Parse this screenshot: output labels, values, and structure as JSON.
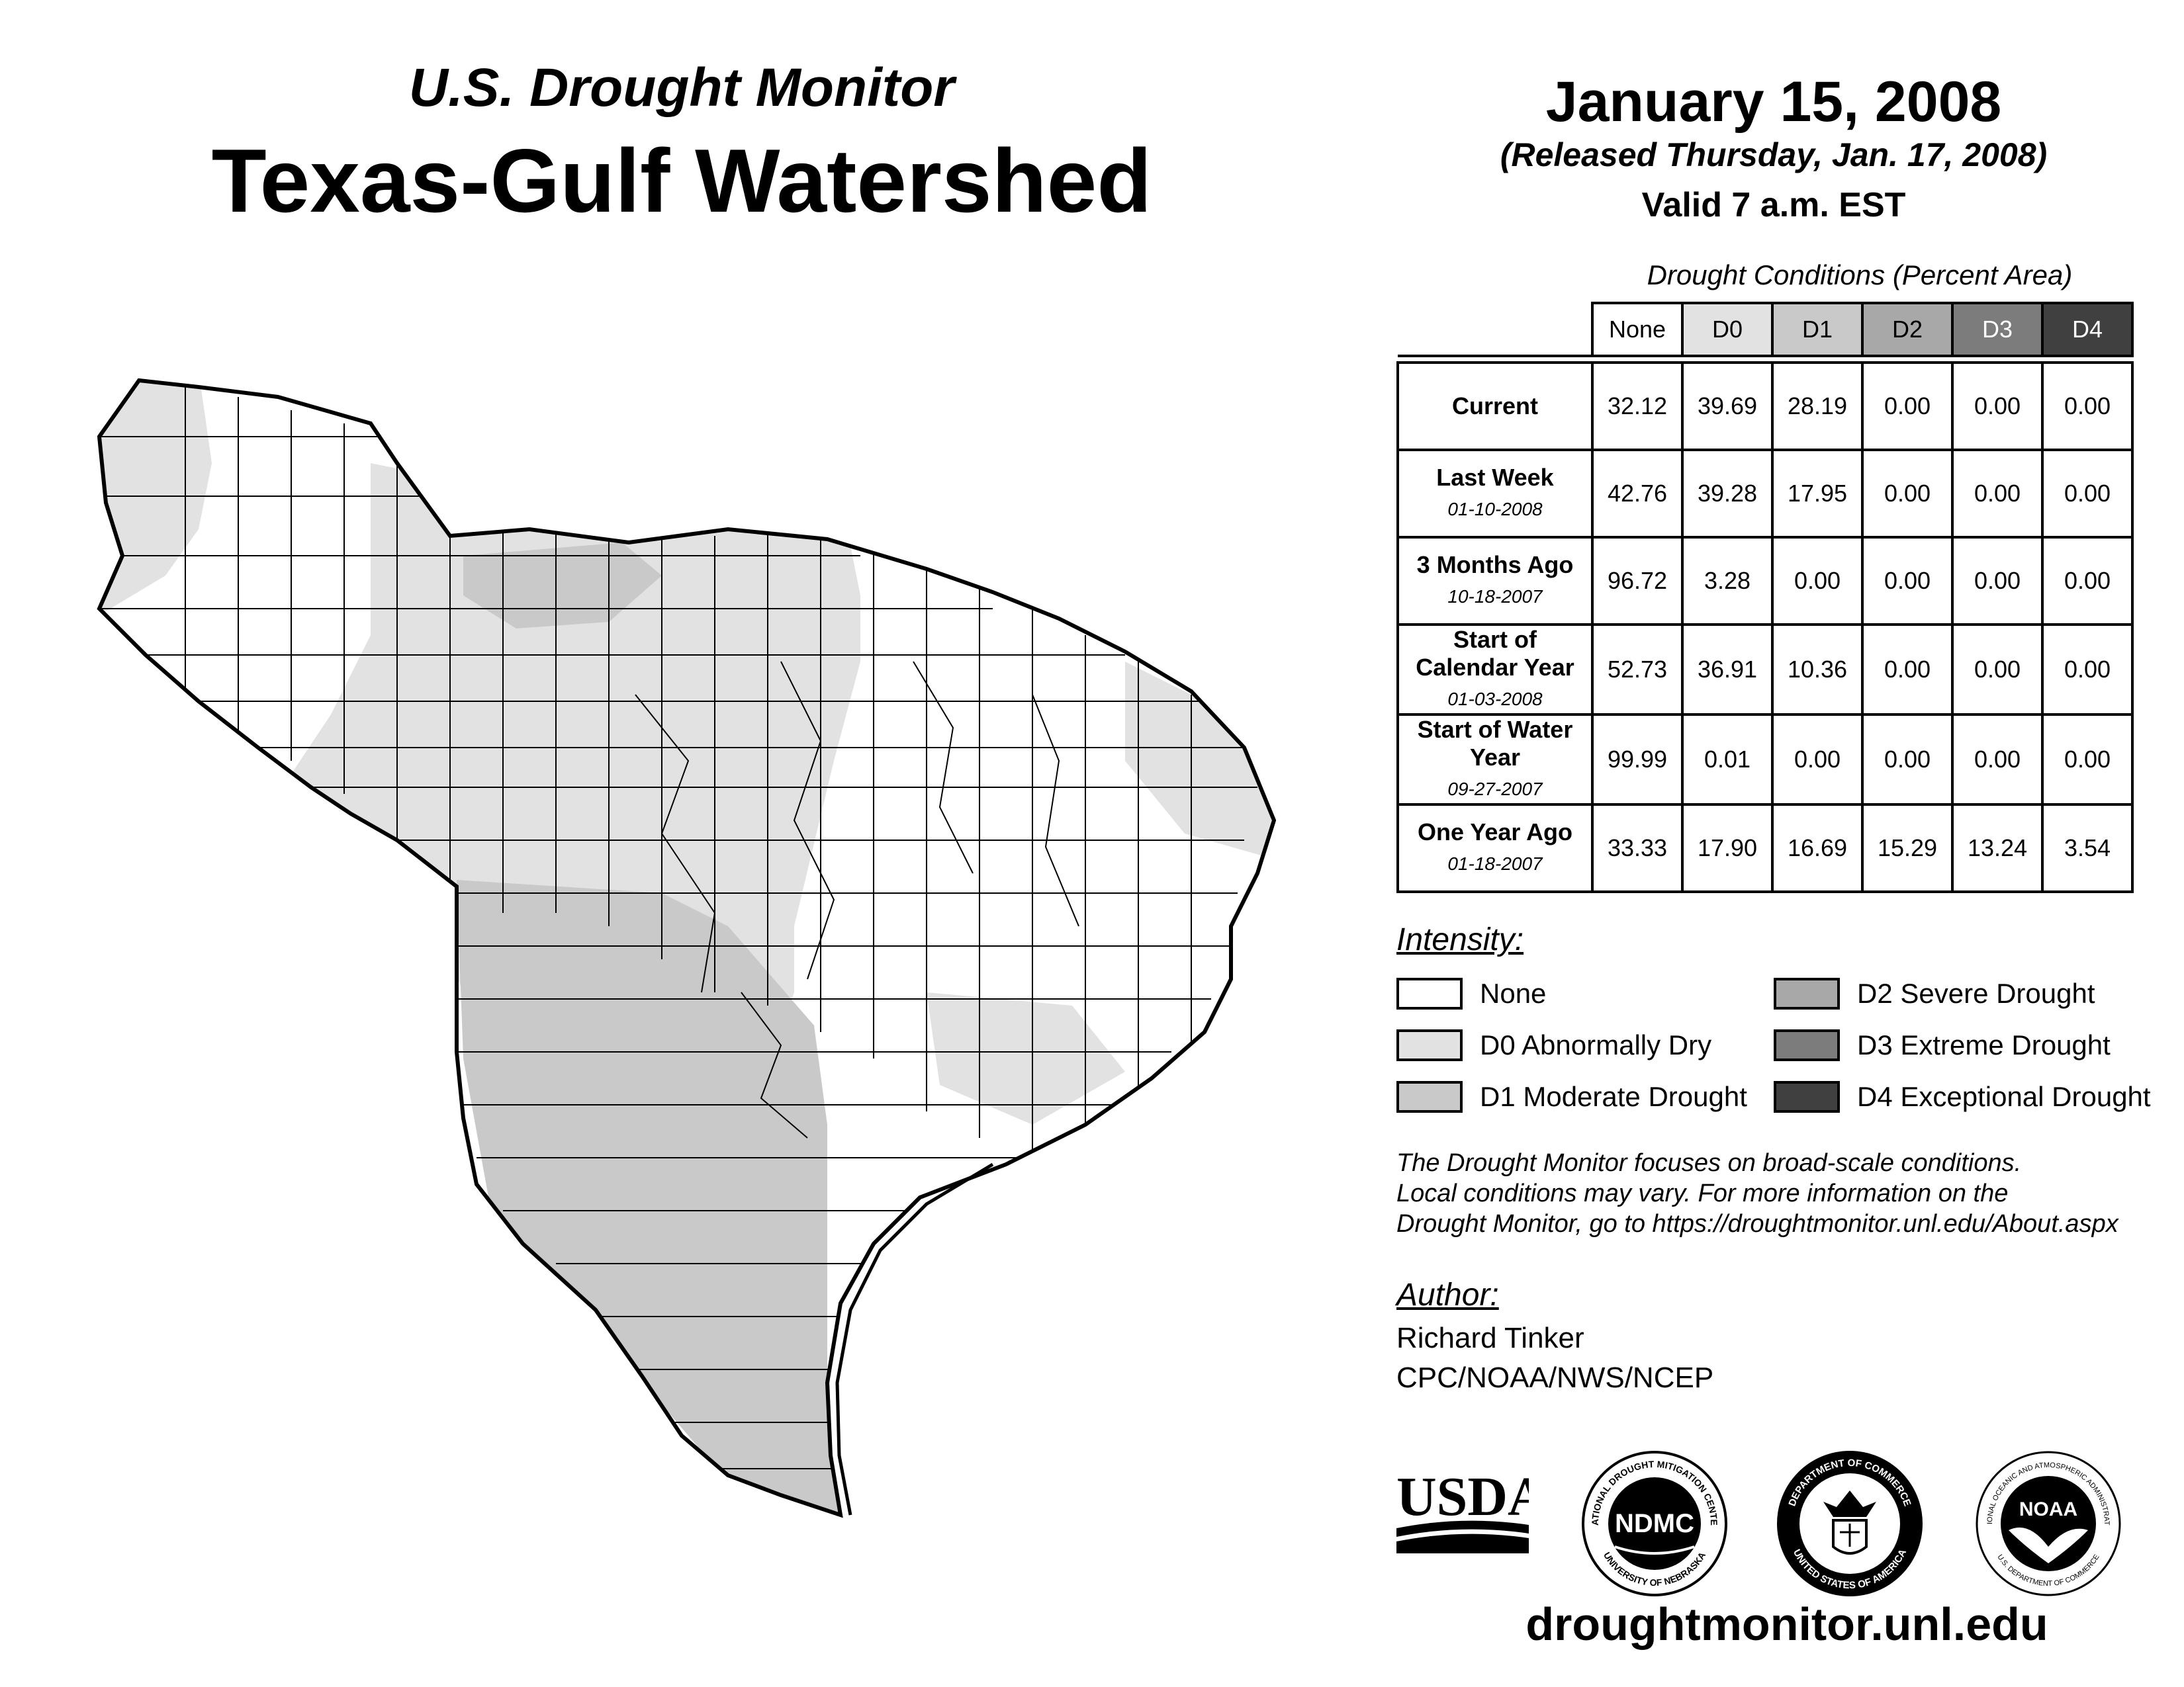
{
  "header": {
    "subtitle": "U.S. Drought Monitor",
    "title": "Texas-Gulf Watershed",
    "date": "January 15, 2008",
    "released": "(Released Thursday, Jan. 17, 2008)",
    "valid": "Valid 7 a.m. EST"
  },
  "table": {
    "caption": "Drought Conditions (Percent Area)",
    "columns": [
      "None",
      "D0",
      "D1",
      "D2",
      "D3",
      "D4"
    ],
    "rows": [
      {
        "label": "Current",
        "date": "",
        "values": [
          "32.12",
          "39.69",
          "28.19",
          "0.00",
          "0.00",
          "0.00"
        ]
      },
      {
        "label": "Last Week",
        "date": "01-10-2008",
        "values": [
          "42.76",
          "39.28",
          "17.95",
          "0.00",
          "0.00",
          "0.00"
        ]
      },
      {
        "label": "3 Months Ago",
        "date": "10-18-2007",
        "values": [
          "96.72",
          "3.28",
          "0.00",
          "0.00",
          "0.00",
          "0.00"
        ]
      },
      {
        "label": "Start of Calendar Year",
        "date": "01-03-2008",
        "values": [
          "52.73",
          "36.91",
          "10.36",
          "0.00",
          "0.00",
          "0.00"
        ]
      },
      {
        "label": "Start of Water Year",
        "date": "09-27-2007",
        "values": [
          "99.99",
          "0.01",
          "0.00",
          "0.00",
          "0.00",
          "0.00"
        ]
      },
      {
        "label": "One Year Ago",
        "date": "01-18-2007",
        "values": [
          "33.33",
          "17.90",
          "16.69",
          "15.29",
          "13.24",
          "3.54"
        ]
      }
    ]
  },
  "legend": {
    "title": "Intensity:",
    "items": [
      {
        "label": "None",
        "color": "#ffffff"
      },
      {
        "label": "D0 Abnormally Dry",
        "color": "#e2e2e2"
      },
      {
        "label": "D1 Moderate Drought",
        "color": "#c9c9c9"
      },
      {
        "label": "D2 Severe Drought",
        "color": "#a8a8a8"
      },
      {
        "label": "D3 Extreme Drought",
        "color": "#7c7c7c"
      },
      {
        "label": "D4 Exceptional Drought",
        "color": "#404040"
      }
    ]
  },
  "note": {
    "line1": "The Drought Monitor focuses on broad-scale conditions.",
    "line2": "Local conditions may vary. For more information on the",
    "line3": "Drought Monitor, go to https://droughtmonitor.unl.edu/About.aspx"
  },
  "author": {
    "label": "Author:",
    "name": "Richard Tinker",
    "org": "CPC/NOAA/NWS/NCEP"
  },
  "logos": {
    "usda": "USDA",
    "ndmc": "NDMC",
    "ndmc_ring_top": "NATIONAL DROUGHT MITIGATION CENTER",
    "ndmc_ring_bottom": "UNIVERSITY OF NEBRASKA",
    "doc_ring_top": "DEPARTMENT OF COMMERCE",
    "doc_ring_bottom": "UNITED STATES OF AMERICA",
    "noaa": "NOAA",
    "noaa_ring_top": "NATIONAL OCEANIC AND ATMOSPHERIC ADMINISTRATION",
    "noaa_ring_bottom": "U.S. DEPARTMENT OF COMMERCE"
  },
  "footer": {
    "site": "droughtmonitor.unl.edu"
  },
  "map": {
    "region": "Texas-Gulf Watershed",
    "categories_shown": [
      "None",
      "D0",
      "D1"
    ]
  }
}
